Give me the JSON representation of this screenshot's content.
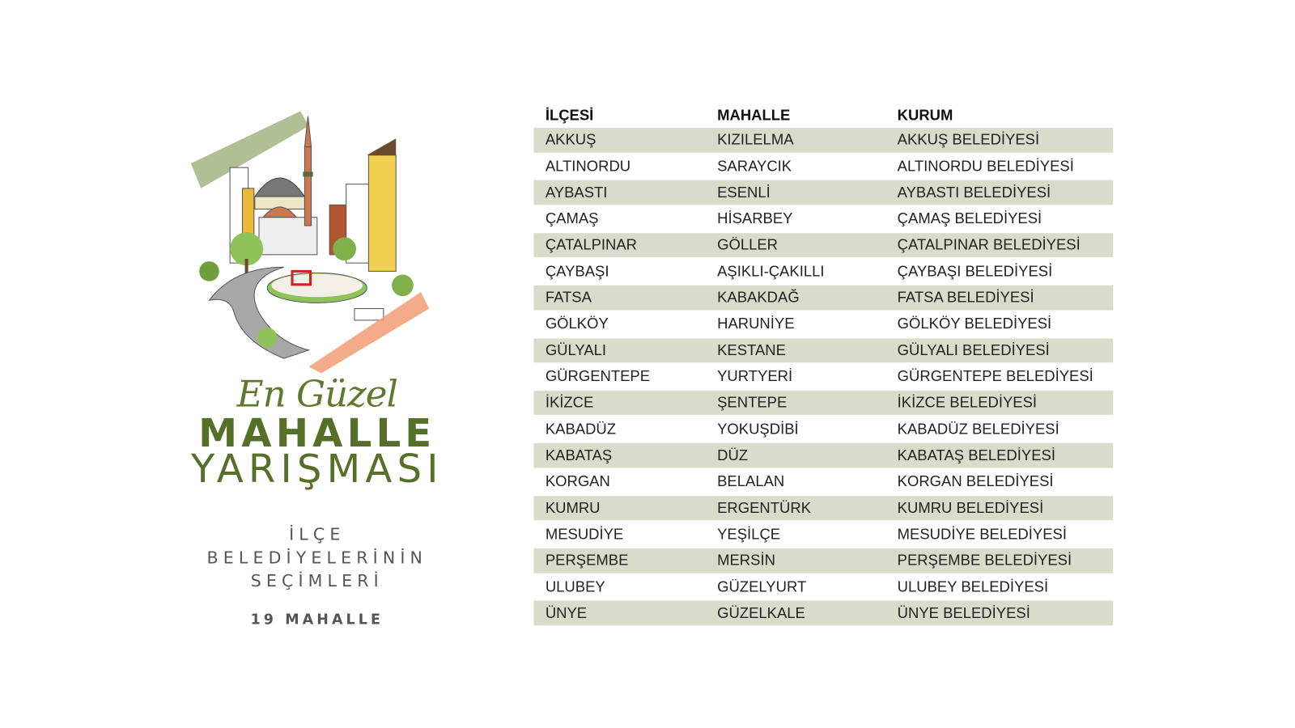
{
  "poster": {
    "script_title": "En Güzel",
    "title_line1": "MAHALLE",
    "title_line2": "YARIŞMASI",
    "subtitle_lines": [
      "İLÇE",
      "BELEDİYELERİNİN",
      "SEÇİMLERİ"
    ],
    "count_label": "19 MAHALLE",
    "colors": {
      "green": "#56702a",
      "brush_green": "#a7b88a",
      "brush_peach": "#f2a27c",
      "row_band": "#d9dccb"
    }
  },
  "table": {
    "headers": [
      "İLÇESİ",
      "MAHALLE",
      "KURUM"
    ],
    "rows": [
      [
        "AKKUŞ",
        "KIZILELMA",
        "AKKUŞ BELEDİYESİ"
      ],
      [
        "ALTINORDU",
        "SARAYCIK",
        "ALTINORDU BELEDİYESİ"
      ],
      [
        "AYBASTI",
        "ESENLİ",
        "AYBASTI BELEDİYESİ"
      ],
      [
        "ÇAMAŞ",
        "HİSARBEY",
        "ÇAMAŞ BELEDİYESİ"
      ],
      [
        "ÇATALPINAR",
        "GÖLLER",
        "ÇATALPINAR BELEDİYESİ"
      ],
      [
        "ÇAYBAŞI",
        "AŞIKLI-ÇAKILLI",
        "ÇAYBAŞI BELEDİYESİ"
      ],
      [
        "FATSA",
        "KABAKDAĞ",
        "FATSA BELEDİYESİ"
      ],
      [
        "GÖLKÖY",
        "HARUNİYE",
        "GÖLKÖY BELEDİYESİ"
      ],
      [
        "GÜLYALI",
        "KESTANE",
        "GÜLYALI BELEDİYESİ"
      ],
      [
        "GÜRGENTEPE",
        "YURTYERİ",
        "GÜRGENTEPE BELEDİYESİ"
      ],
      [
        "İKİZCE",
        "ŞENTEPE",
        "İKİZCE BELEDİYESİ"
      ],
      [
        "KABADÜZ",
        "YOKUŞDİBİ",
        "KABADÜZ BELEDİYESİ"
      ],
      [
        "KABATAŞ",
        "DÜZ",
        "KABATAŞ BELEDİYESİ"
      ],
      [
        "KORGAN",
        "BELALAN",
        "KORGAN BELEDİYESİ"
      ],
      [
        "KUMRU",
        "ERGENTÜRK",
        "KUMRU BELEDİYESİ"
      ],
      [
        "MESUDİYE",
        "YEŞİLÇE",
        "MESUDİYE BELEDİYESİ"
      ],
      [
        "PERŞEMBE",
        "MERSİN",
        "PERŞEMBE BELEDİYESİ"
      ],
      [
        "ULUBEY",
        "GÜZELYURT",
        "ULUBEY BELEDİYESİ"
      ],
      [
        "ÜNYE",
        "GÜZELKALE",
        "ÜNYE BELEDİYESİ"
      ]
    ]
  }
}
